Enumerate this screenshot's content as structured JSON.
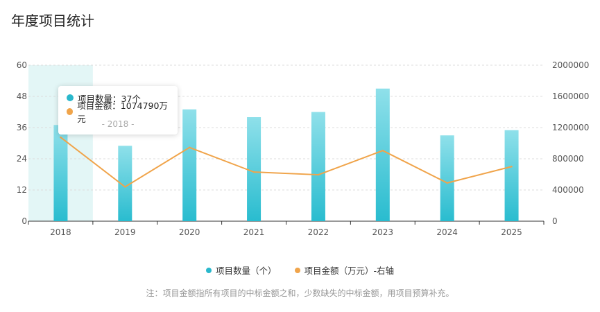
{
  "title": "年度项目统计",
  "legend": {
    "count_label": "项目数量（个）",
    "amount_label": "项目金额（万元）-右轴"
  },
  "note": "注：项目金额指所有项目的中标金额之和，少数缺失的中标金额，用项目预算补充。",
  "tooltip": {
    "count_line": "项目数量：37个",
    "amount_line": "项目金额：1074790万元",
    "year_line": "- 2018 -"
  },
  "colors": {
    "bar_top": "#8fe0ea",
    "bar_bottom": "#29bccf",
    "line": "#f0a44a",
    "highlight": "#e3f6f6",
    "count_dot": "#2ab8cc",
    "amount_dot": "#f0a44a"
  },
  "chart_data": {
    "type": "bar",
    "categories": [
      "2018",
      "2019",
      "2020",
      "2021",
      "2022",
      "2023",
      "2024",
      "2025"
    ],
    "series": [
      {
        "name": "项目数量（个）",
        "type": "bar",
        "axis": "left",
        "values": [
          37,
          29,
          43,
          40,
          42,
          51,
          33,
          35
        ]
      },
      {
        "name": "项目金额（万元）-右轴",
        "type": "line",
        "axis": "right",
        "values": [
          1074790,
          440000,
          945000,
          630000,
          595000,
          905000,
          490000,
          700000
        ]
      }
    ],
    "ylim_left": [
      0,
      60
    ],
    "yticks_left": [
      "0",
      "12",
      "24",
      "36",
      "48",
      "60"
    ],
    "ylim_right": [
      0,
      2000000
    ],
    "yticks_right": [
      "0",
      "400000",
      "800000",
      "1200000",
      "1600000",
      "2000000"
    ],
    "highlighted_category": "2018",
    "grid": true,
    "legend_position": "bottom"
  }
}
